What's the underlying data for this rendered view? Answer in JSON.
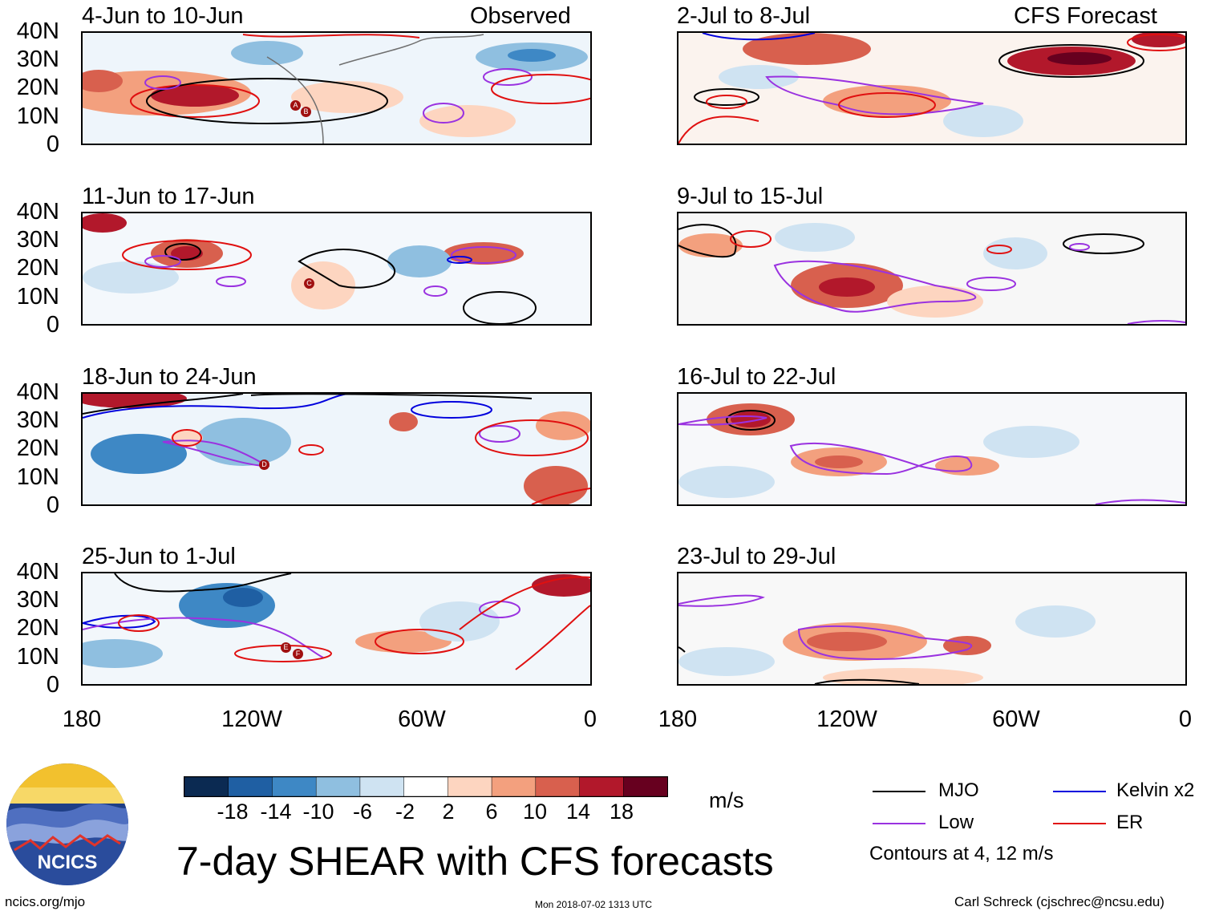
{
  "panels": [
    {
      "id": "p1",
      "period": "4-Jun to 10-Jun",
      "tag": "Observed",
      "storms": [
        "A",
        "B"
      ]
    },
    {
      "id": "p2",
      "period": "11-Jun to 17-Jun",
      "tag": "",
      "storms": [
        "C"
      ]
    },
    {
      "id": "p3",
      "period": "18-Jun to 24-Jun",
      "tag": "",
      "storms": [
        "D"
      ]
    },
    {
      "id": "p4",
      "period": "25-Jun to 1-Jul",
      "tag": "",
      "storms": [
        "E",
        "F"
      ]
    },
    {
      "id": "p5",
      "period": "2-Jul to 8-Jul",
      "tag": "CFS Forecast",
      "storms": []
    },
    {
      "id": "p6",
      "period": "9-Jul to 15-Jul",
      "tag": "",
      "storms": []
    },
    {
      "id": "p7",
      "period": "16-Jul to 22-Jul",
      "tag": "",
      "storms": []
    },
    {
      "id": "p8",
      "period": "23-Jul to 29-Jul",
      "tag": "",
      "storms": []
    }
  ],
  "axes": {
    "lat_labels": [
      "40N",
      "30N",
      "20N",
      "10N",
      "0"
    ],
    "lon_labels": [
      "180",
      "120W",
      "60W",
      "0"
    ]
  },
  "colorbar": {
    "unit": "m/s",
    "tick_labels": [
      "-18",
      "-14",
      "-10",
      "-6",
      "-2",
      "2",
      "6",
      "10",
      "14",
      "18"
    ],
    "colors": [
      "#0b2a52",
      "#1f5fa3",
      "#3e88c5",
      "#8fbfe0",
      "#cfe3f2",
      "#ffffff",
      "#fdd5c0",
      "#f3a07e",
      "#d8604e",
      "#b2182b",
      "#67001f"
    ]
  },
  "legend": {
    "items": [
      {
        "label": "MJO",
        "color": "#000000"
      },
      {
        "label": "Kelvin x2",
        "color": "#0000dd"
      },
      {
        "label": "Low",
        "color": "#9a32e0"
      },
      {
        "label": "ER",
        "color": "#e01010"
      }
    ],
    "note": "Contours at 4, 12 m/s"
  },
  "logo": {
    "text": "NCICS"
  },
  "title": "7-day SHEAR with CFS forecasts",
  "footer": {
    "left": "ncics.org/mjo",
    "center": "Mon 2018-07-02 1313 UTC",
    "right": "Carl Schreck (cjschrec@ncsu.edu)"
  }
}
